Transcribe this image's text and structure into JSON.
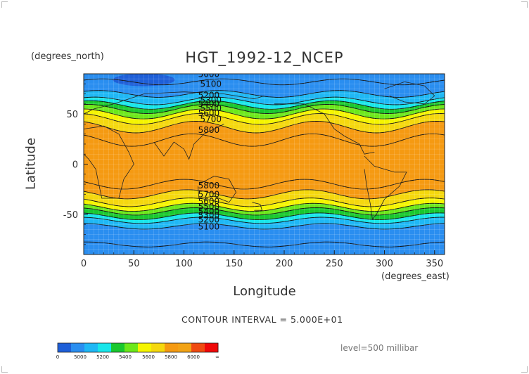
{
  "chart_data": {
    "type": "heatmap",
    "title": "HGT_1992-12_NCEP",
    "xlabel": "Longitude",
    "ylabel": "Latitude",
    "x_units": "(degrees_east)",
    "y_units": "(degrees_north)",
    "xlim": [
      0,
      360
    ],
    "ylim": [
      -90,
      90
    ],
    "x_ticks": [
      0,
      50,
      100,
      150,
      200,
      250,
      300,
      350
    ],
    "y_ticks": [
      50,
      0,
      -50
    ],
    "contour_interval_label": "CONTOUR INTERVAL = 5.000E+01",
    "level_label": "level=500 millibar",
    "contour_labels": [
      "5000",
      "5100",
      "5200",
      "5300",
      "5400",
      "5500",
      "5600",
      "5700",
      "5800",
      "5800",
      "5700",
      "5600",
      "5500",
      "5400",
      "5300",
      "5200",
      "5100"
    ],
    "colorbar": {
      "tick_labels": [
        "0",
        "5000",
        "5200",
        "5400",
        "5600",
        "5800",
        "6000",
        "∞"
      ],
      "colors": [
        "#1e5fd8",
        "#2a8ef0",
        "#1fb8f5",
        "#18e6ea",
        "#19c82e",
        "#6ce81a",
        "#f5f500",
        "#f5d80e",
        "#f59a12",
        "#f2a316",
        "#f04a10",
        "#f00808"
      ]
    },
    "bands": [
      {
        "range": "5000-5100",
        "color": "#1e5fd8"
      },
      {
        "range": "5100-5200",
        "color": "#2a8ef0"
      },
      {
        "range": "5200-5300",
        "color": "#1fb8f5"
      },
      {
        "range": "5300-5400",
        "color": "#18e6ea"
      },
      {
        "range": "5400-5500",
        "color": "#19c82e"
      },
      {
        "range": "5500-5600",
        "color": "#6ce81a"
      },
      {
        "range": "5600-5700",
        "color": "#f5f500"
      },
      {
        "range": "5700-5800",
        "color": "#f5d80e"
      },
      {
        "range": ">5800",
        "color": "#f59a12"
      }
    ]
  }
}
